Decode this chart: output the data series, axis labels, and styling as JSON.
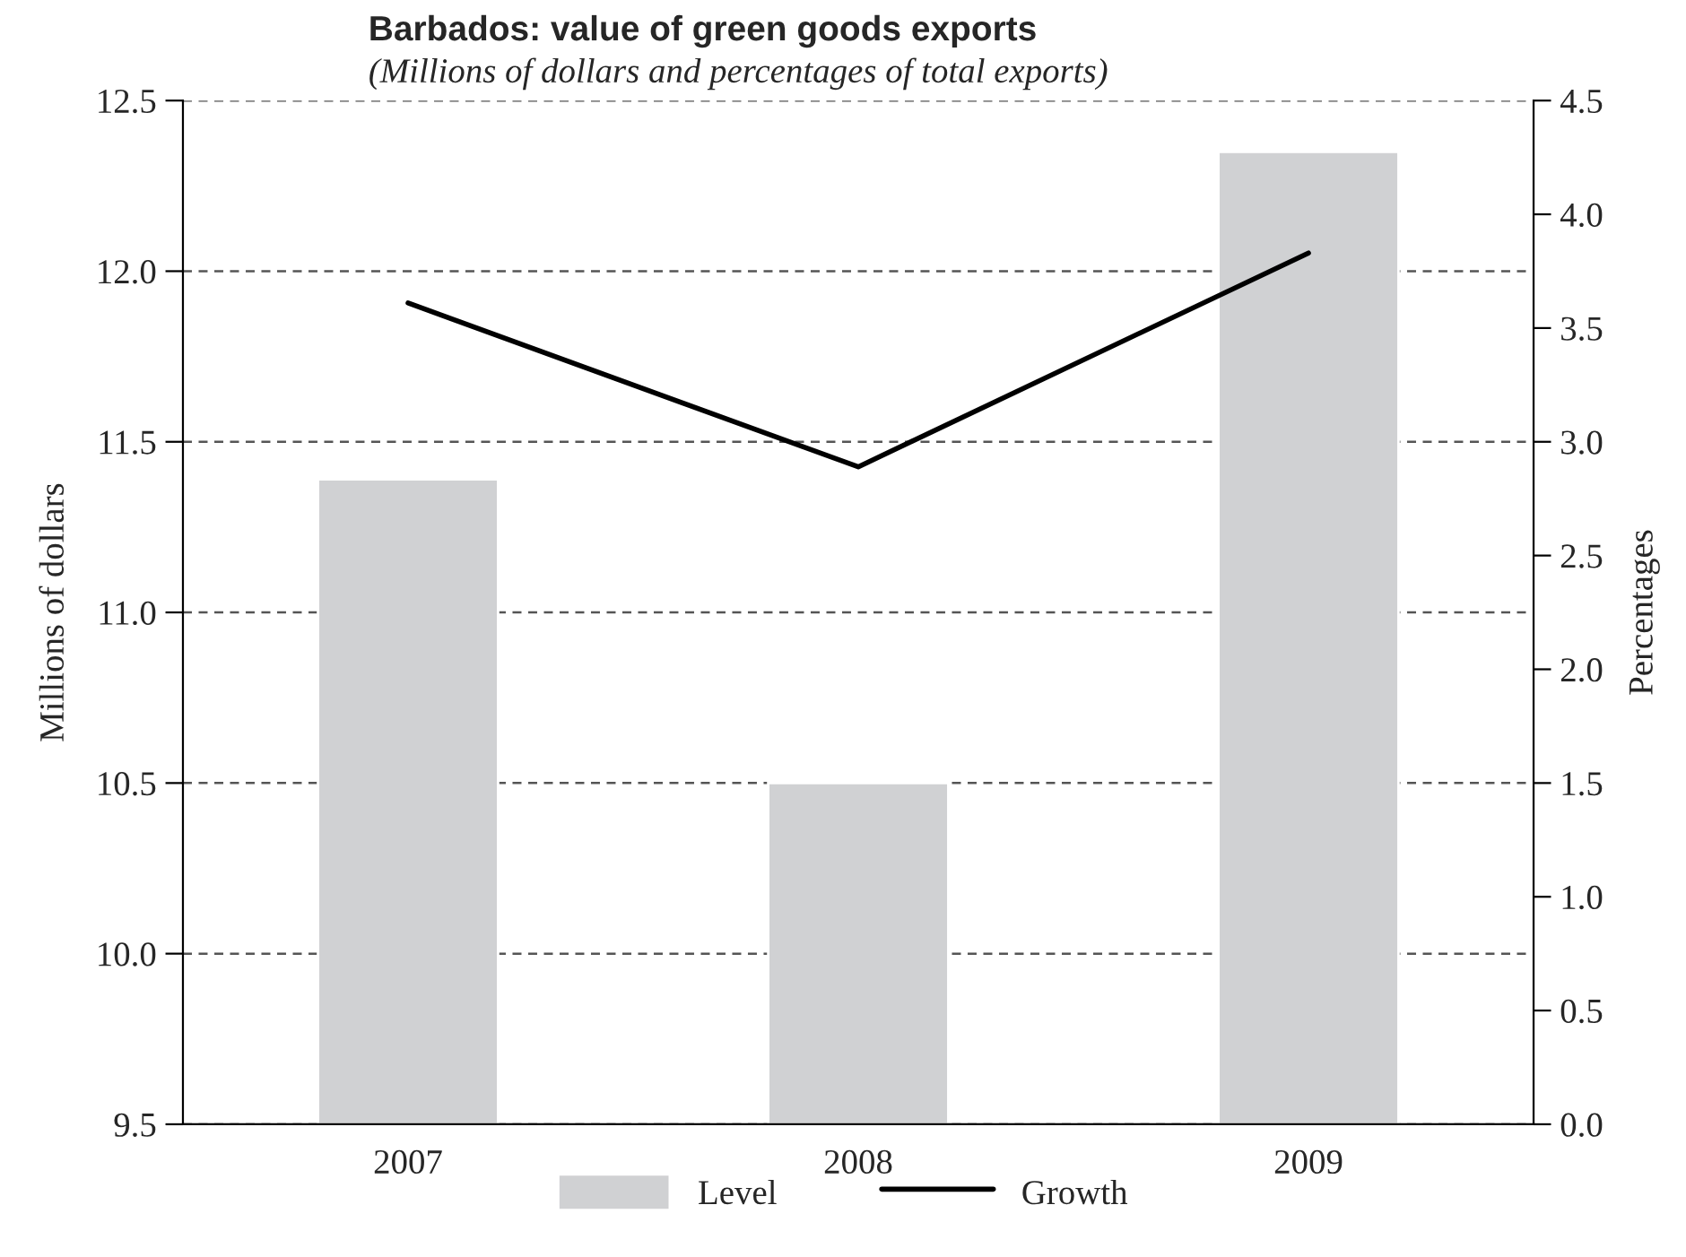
{
  "chart_data": {
    "type": "bar",
    "title": "Barbados: value of green goods exports",
    "subtitle": "(Millions of dollars and percentages of total exports)",
    "ylabel": "Millions of dollars",
    "y2label": "Percentages",
    "categories": [
      "2007",
      "2008",
      "2009"
    ],
    "series": [
      {
        "name": "Level",
        "color": "#d0d1d3",
        "values": [
          11.39,
          10.5,
          12.35
        ]
      },
      {
        "name": "Growth",
        "type": "line",
        "axis": "y2",
        "color": "#000000",
        "values": [
          3.61,
          2.89,
          3.83
        ]
      }
    ],
    "ylim": [
      9.5,
      12.5
    ],
    "yticks": [
      {
        "value": 9.5,
        "label": "9.5"
      },
      {
        "value": 10.0,
        "label": "10.0"
      },
      {
        "value": 10.5,
        "label": "10.5"
      },
      {
        "value": 11.0,
        "label": "11.0"
      },
      {
        "value": 11.5,
        "label": "11.5"
      },
      {
        "value": 12.0,
        "label": "12.0"
      },
      {
        "value": 12.5,
        "label": "12.5"
      }
    ],
    "y2lim": [
      0,
      4.5
    ],
    "y2ticks": [
      {
        "value": 0,
        "label": "0.0"
      },
      {
        "value": 0.5,
        "label": "0.5"
      },
      {
        "value": 1.0,
        "label": "1.0"
      },
      {
        "value": 1.5,
        "label": "1.5"
      },
      {
        "value": 2.0,
        "label": "2.0"
      },
      {
        "value": 2.5,
        "label": "2.5"
      },
      {
        "value": 3.0,
        "label": "3.0"
      },
      {
        "value": 3.5,
        "label": "3.5"
      },
      {
        "value": 4.0,
        "label": "4.0"
      },
      {
        "value": 4.5,
        "label": "4.5"
      }
    ],
    "grid": "y",
    "legend": "bottom",
    "line_style": "solid",
    "marker": "none"
  }
}
